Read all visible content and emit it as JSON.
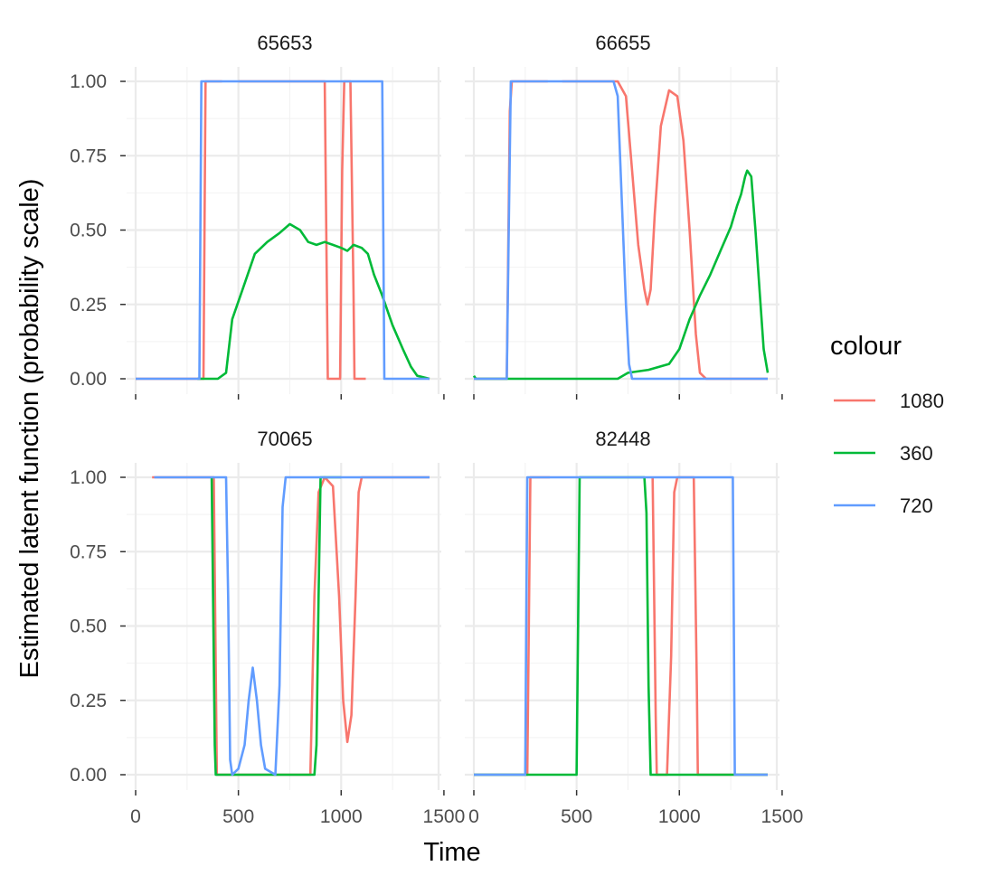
{
  "chart_data": {
    "type": "line",
    "xlabel": "Time",
    "ylabel": "Estimated latent function (probability scale)",
    "xlim": [
      0,
      1430
    ],
    "ylim": [
      0,
      1
    ],
    "x_ticks": [
      0,
      500,
      1000,
      1500
    ],
    "x_tick_labels": [
      "0",
      "500",
      "1000",
      "1500"
    ],
    "y_ticks": [
      0,
      0.25,
      0.5,
      0.75,
      1
    ],
    "y_tick_labels": [
      "0.00",
      "0.25",
      "0.50",
      "0.75",
      "1.00"
    ],
    "grid": true,
    "legend": {
      "title": "colour",
      "position": "right",
      "entries": [
        {
          "name": "1080",
          "color": "#F8766D"
        },
        {
          "name": "360",
          "color": "#00BA38"
        },
        {
          "name": "720",
          "color": "#619CFF"
        }
      ]
    },
    "panels": [
      {
        "title": "65653",
        "series": [
          {
            "name": "1080",
            "segments": [
              [
                [
                  0,
                  0
                ],
                [
                  330,
                  0
                ],
                [
                  340,
                  1
                ],
                [
                  420,
                  1
                ]
              ],
              [
                [
                  500,
                  1
                ],
                [
                  920,
                  1
                ],
                [
                  935,
                  0
                ],
                [
                  995,
                  0
                ],
                [
                  1005,
                  0.7
                ],
                [
                  1015,
                  1
                ],
                [
                  1045,
                  1
                ],
                [
                  1060,
                  0.3
                ],
                [
                  1065,
                  0
                ],
                [
                  1120,
                  0
                ]
              ]
            ]
          },
          {
            "name": "360",
            "segments": [
              [
                [
                  300,
                  0
                ],
                [
                  400,
                  0
                ],
                [
                  440,
                  0.02
                ],
                [
                  470,
                  0.2
                ],
                [
                  520,
                  0.3
                ],
                [
                  580,
                  0.42
                ],
                [
                  640,
                  0.46
                ],
                [
                  700,
                  0.49
                ],
                [
                  750,
                  0.52
                ],
                [
                  800,
                  0.5
                ],
                [
                  840,
                  0.46
                ],
                [
                  880,
                  0.45
                ],
                [
                  920,
                  0.46
                ],
                [
                  960,
                  0.45
                ],
                [
                  1000,
                  0.44
                ],
                [
                  1030,
                  0.43
                ],
                [
                  1060,
                  0.45
                ],
                [
                  1100,
                  0.44
                ],
                [
                  1130,
                  0.42
                ],
                [
                  1160,
                  0.35
                ],
                [
                  1200,
                  0.28
                ],
                [
                  1250,
                  0.18
                ],
                [
                  1300,
                  0.1
                ],
                [
                  1340,
                  0.04
                ],
                [
                  1370,
                  0.01
                ],
                [
                  1430,
                  0
                ]
              ]
            ]
          },
          {
            "name": "720",
            "segments": [
              [
                [
                  0,
                  0
                ],
                [
                  310,
                  0
                ],
                [
                  320,
                  1
                ],
                [
                  1200,
                  1
                ],
                [
                  1210,
                  0
                ],
                [
                  1430,
                  0
                ]
              ]
            ]
          }
        ]
      },
      {
        "title": "66655",
        "series": [
          {
            "name": "1080",
            "segments": [
              [
                [
                  0,
                  0
                ],
                [
                  160,
                  0
                ],
                [
                  175,
                  0.9
                ],
                [
                  185,
                  1
                ],
                [
                  360,
                  1
                ]
              ],
              [
                [
                  430,
                  1
                ],
                [
                  700,
                  1
                ],
                [
                  740,
                  0.95
                ],
                [
                  770,
                  0.7
                ],
                [
                  800,
                  0.45
                ],
                [
                  830,
                  0.3
                ],
                [
                  845,
                  0.25
                ],
                [
                  860,
                  0.3
                ],
                [
                  880,
                  0.55
                ],
                [
                  910,
                  0.85
                ],
                [
                  950,
                  0.97
                ],
                [
                  990,
                  0.95
                ],
                [
                  1020,
                  0.8
                ],
                [
                  1050,
                  0.5
                ],
                [
                  1080,
                  0.15
                ],
                [
                  1100,
                  0.02
                ],
                [
                  1130,
                  0
                ],
                [
                  1430,
                  0
                ]
              ]
            ]
          },
          {
            "name": "360",
            "segments": [
              [
                [
                  0,
                  0.01
                ],
                [
                  10,
                  0
                ],
                [
                  700,
                  0
                ],
                [
                  750,
                  0.02
                ],
                [
                  850,
                  0.03
                ],
                [
                  950,
                  0.05
                ],
                [
                  1000,
                  0.1
                ],
                [
                  1050,
                  0.2
                ],
                [
                  1100,
                  0.28
                ],
                [
                  1150,
                  0.35
                ],
                [
                  1200,
                  0.43
                ],
                [
                  1250,
                  0.51
                ],
                [
                  1280,
                  0.58
                ],
                [
                  1300,
                  0.62
                ],
                [
                  1320,
                  0.68
                ],
                [
                  1330,
                  0.7
                ],
                [
                  1350,
                  0.68
                ],
                [
                  1370,
                  0.5
                ],
                [
                  1390,
                  0.3
                ],
                [
                  1410,
                  0.1
                ],
                [
                  1430,
                  0.02
                ]
              ]
            ]
          },
          {
            "name": "720",
            "segments": [
              [
                [
                  0,
                  0
                ],
                [
                  160,
                  0
                ],
                [
                  170,
                  0.5
                ],
                [
                  180,
                  1
                ],
                [
                  680,
                  1
                ],
                [
                  700,
                  0.95
                ],
                [
                  720,
                  0.6
                ],
                [
                  740,
                  0.25
                ],
                [
                  755,
                  0.05
                ],
                [
                  770,
                  0
                ],
                [
                  1430,
                  0
                ]
              ]
            ]
          }
        ]
      },
      {
        "title": "70065",
        "series": [
          {
            "name": "1080",
            "segments": [
              [
                [
                  80,
                  1
                ],
                [
                  380,
                  1
                ],
                [
                  395,
                  0
                ],
                [
                  850,
                  0
                ],
                [
                  870,
                  0.6
                ],
                [
                  890,
                  0.95
                ],
                [
                  920,
                  1
                ],
                [
                  960,
                  0.97
                ],
                [
                  990,
                  0.6
                ],
                [
                  1010,
                  0.25
                ],
                [
                  1030,
                  0.11
                ],
                [
                  1050,
                  0.2
                ],
                [
                  1070,
                  0.6
                ],
                [
                  1085,
                  0.95
                ],
                [
                  1100,
                  1
                ],
                [
                  1430,
                  1
                ]
              ]
            ]
          },
          {
            "name": "360",
            "segments": [
              [
                [
                  370,
                  1
                ],
                [
                  385,
                  0.1
                ],
                [
                  390,
                  0
                ],
                [
                  870,
                  0
                ],
                [
                  880,
                  0.1
                ],
                [
                  890,
                  0.6
                ],
                [
                  900,
                  1
                ],
                [
                  1000,
                  1
                ]
              ]
            ]
          },
          {
            "name": "720",
            "segments": [
              [
                [
                  90,
                  1
                ],
                [
                  440,
                  1
                ],
                [
                  450,
                  0.6
                ],
                [
                  460,
                  0.05
                ],
                [
                  470,
                  0
                ],
                [
                  500,
                  0.02
                ],
                [
                  530,
                  0.1
                ],
                [
                  550,
                  0.25
                ],
                [
                  570,
                  0.36
                ],
                [
                  590,
                  0.25
                ],
                [
                  610,
                  0.1
                ],
                [
                  630,
                  0.02
                ],
                [
                  680,
                  0
                ],
                [
                  700,
                  0.3
                ],
                [
                  715,
                  0.9
                ],
                [
                  730,
                  1
                ],
                [
                  1430,
                  1
                ]
              ]
            ]
          }
        ]
      },
      {
        "title": "82448",
        "series": [
          {
            "name": "1080",
            "segments": [
              [
                [
                  0,
                  0
                ],
                [
                  260,
                  0
                ],
                [
                  275,
                  1
                ],
                [
                  370,
                  1
                ]
              ],
              [
                [
                  870,
                  1
                ],
                [
                  885,
                  0.2
                ],
                [
                  890,
                  0
                ],
                [
                  940,
                  0
                ],
                [
                  960,
                  0.4
                ],
                [
                  975,
                  0.95
                ],
                [
                  990,
                  1
                ],
                [
                  1070,
                  1
                ],
                [
                  1085,
                  0.3
                ],
                [
                  1090,
                  0
                ],
                [
                  1430,
                  0
                ]
              ]
            ]
          },
          {
            "name": "360",
            "segments": [
              [
                [
                  0,
                  0
                ],
                [
                  500,
                  0
                ],
                [
                  515,
                  1
                ],
                [
                  830,
                  1
                ],
                [
                  840,
                  0.88
                ],
                [
                  850,
                  0.3
                ],
                [
                  860,
                  0
                ],
                [
                  1430,
                  0
                ]
              ]
            ]
          },
          {
            "name": "720",
            "segments": [
              [
                [
                  0,
                  0
                ],
                [
                  250,
                  0
                ],
                [
                  260,
                  1
                ],
                [
                  1260,
                  1
                ],
                [
                  1270,
                  0
                ],
                [
                  1430,
                  0
                ]
              ]
            ]
          }
        ]
      }
    ]
  }
}
